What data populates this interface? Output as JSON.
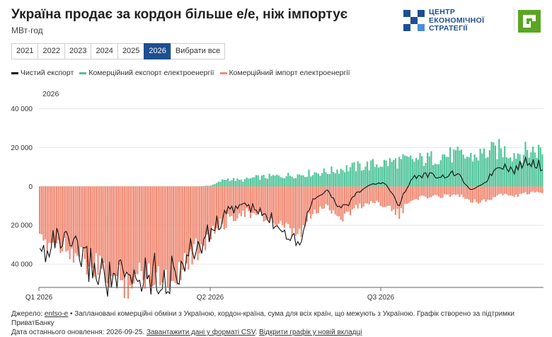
{
  "header": {
    "title": "Україна продає за кордон більше е/е, ніж імпортує",
    "unit": "МВт·год"
  },
  "logos": {
    "ces_lines": [
      "ЦЕНТР",
      "ЕКОНОМІЧНОЇ",
      "СТРАТЕГІЇ"
    ],
    "ces_color": "#1d4f91",
    "pb_color": "#5aa624"
  },
  "year_buttons": [
    "2021",
    "2022",
    "2023",
    "2024",
    "2025",
    "2026"
  ],
  "year_selected": "2026",
  "select_all_label": "Вибрати все",
  "legend": [
    {
      "label": "Чистий експорт",
      "color": "#111111"
    },
    {
      "label": "Комерційний експорт електроенергії",
      "color": "#4fc49a"
    },
    {
      "label": "Комерційний імпорт електроенергії",
      "color": "#f08a74"
    }
  ],
  "chart_data": {
    "type": "bar",
    "year_label": "2026",
    "x_tick_labels": [
      "Q1 2026",
      "Q2 2026",
      "Q3 2026"
    ],
    "y_tick_labels": [
      "40 000",
      "20 000",
      "0",
      "20 000",
      "40 000"
    ],
    "ylim": [
      -52000,
      42000
    ],
    "weekly_export": [
      0,
      0,
      0,
      0,
      0,
      0,
      0,
      0,
      0,
      0,
      0,
      0,
      500,
      4000,
      3000,
      4500,
      5000,
      5500,
      6000,
      7000,
      7500,
      9000,
      10000,
      11000,
      12000,
      13000,
      13500,
      14000,
      16000,
      16000,
      15000,
      17000,
      19000,
      17000,
      18000,
      19000
    ],
    "weekly_import": [
      -30000,
      -28000,
      -31000,
      -38000,
      -43000,
      -47000,
      -49000,
      -46000,
      -44000,
      -48000,
      -40000,
      -32000,
      -24000,
      -18000,
      -13000,
      -15000,
      -17000,
      -22000,
      -26000,
      -14000,
      -10000,
      -16000,
      -11000,
      -8000,
      -9000,
      -15000,
      -6000,
      -5500,
      -5000,
      -4000,
      -7000,
      -8000,
      -4000,
      -5000,
      -3500,
      -3000
    ],
    "weekly_net": [
      -36000,
      -27000,
      -30000,
      -37000,
      -43000,
      -48000,
      -49000,
      -46000,
      -44000,
      -48000,
      -39000,
      -31000,
      -22000,
      -14000,
      -9000,
      -12000,
      -17000,
      -21000,
      -28000,
      -6000,
      -2000,
      -12000,
      -4000,
      1000,
      2000,
      -9000,
      5000,
      6000,
      5000,
      7000,
      -2000,
      2000,
      12000,
      8000,
      14000,
      10000
    ]
  },
  "footer": {
    "source_prefix": "Джерело:",
    "source_link": "entso-e",
    "source_text": " • Заплановані комерційні обміни з Україною, кордон-країна, сума для всіх країн, що межують з Україною. Графік створено за підтримки ПриватБанку",
    "updated_text": "Дата останнього оновлення: 2026-09-25.",
    "csv_link": "Завантажити дані у форматі CSV",
    "newtab_link": "Відкрити графік у новій вкладці"
  }
}
